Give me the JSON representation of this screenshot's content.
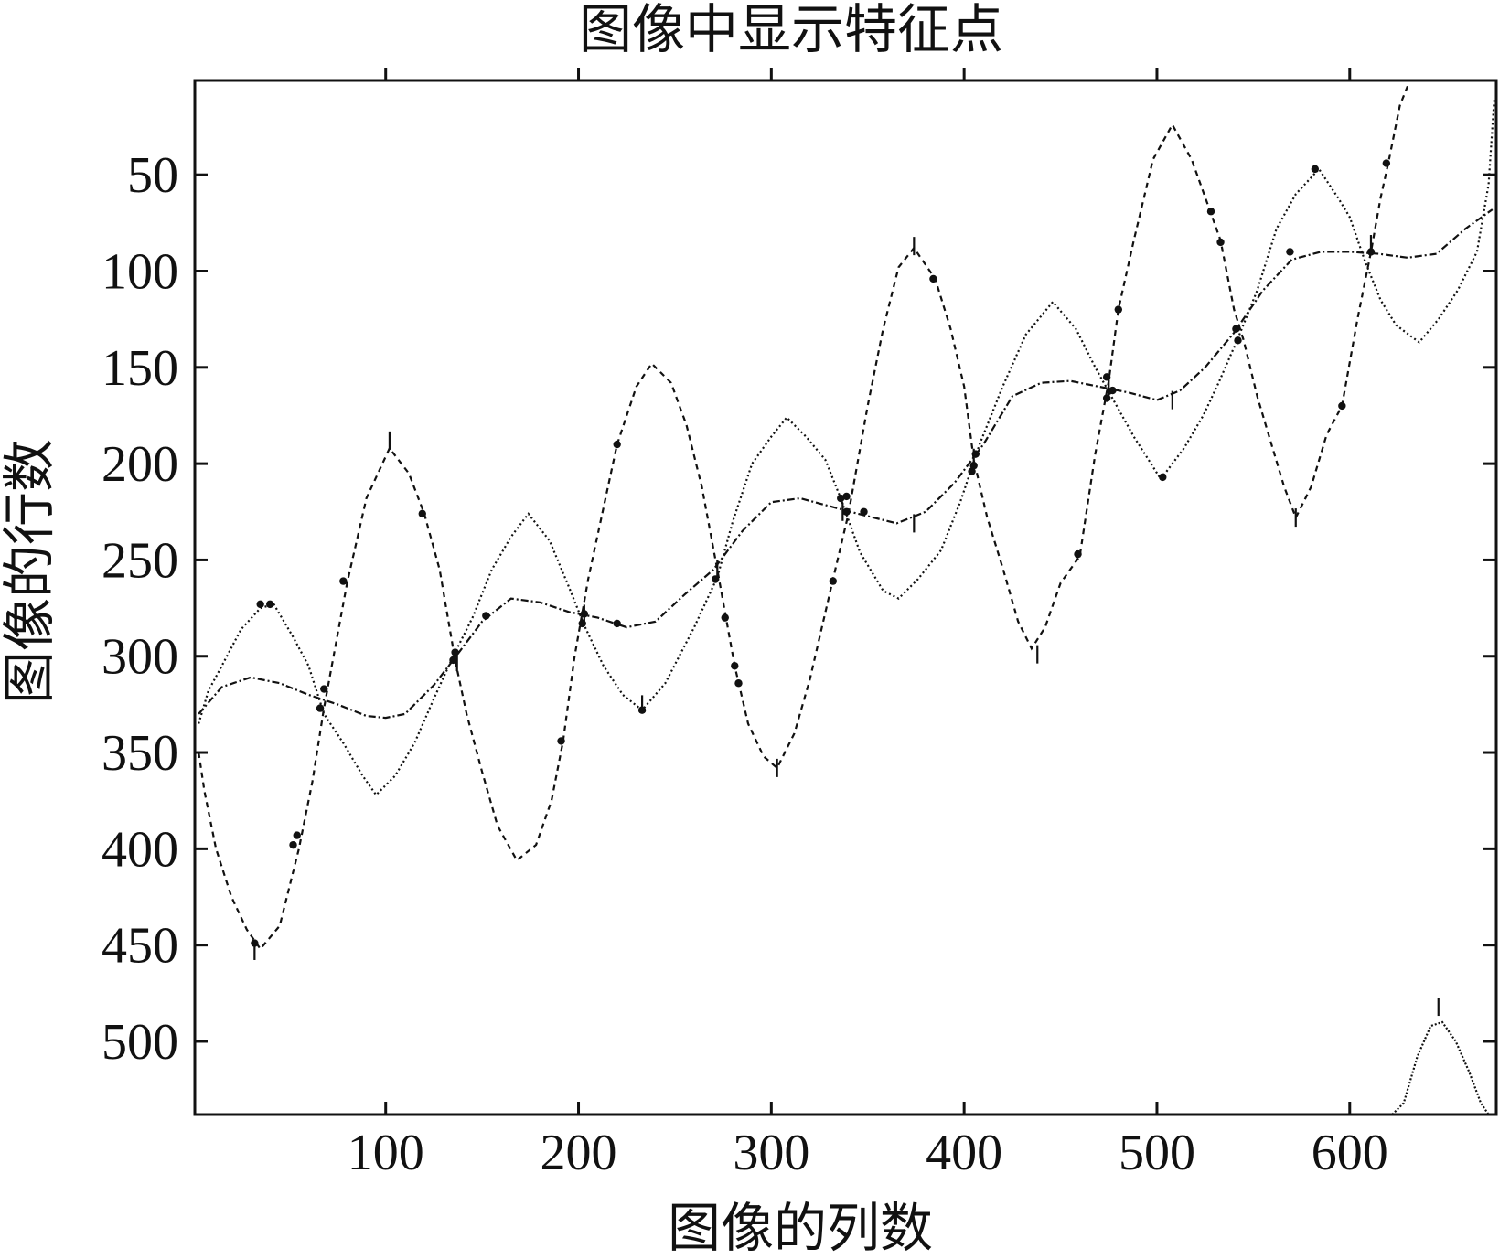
{
  "chart_data": {
    "type": "line",
    "title": "图像中显示特征点",
    "xlabel": "图像的列数",
    "ylabel": "图像的行数",
    "xlim": [
      1,
      676
    ],
    "ylim": [
      1,
      538
    ],
    "y_inverted": true,
    "grid": false,
    "legend": "none",
    "x_ticks": [
      100,
      200,
      300,
      400,
      500,
      600
    ],
    "y_ticks": [
      50,
      100,
      150,
      200,
      250,
      300,
      350,
      400,
      450,
      500
    ],
    "series": [
      {
        "dash": "6,5",
        "points": [
          [
            3,
            350
          ],
          [
            6,
            370
          ],
          [
            12,
            400
          ],
          [
            20,
            425
          ],
          [
            28,
            442
          ],
          [
            35,
            452
          ],
          [
            45,
            440
          ],
          [
            55,
            400
          ],
          [
            62,
            365
          ],
          [
            68,
            327
          ],
          [
            80,
            262
          ],
          [
            90,
            218
          ],
          [
            102,
            192
          ],
          [
            112,
            205
          ],
          [
            120,
            226
          ],
          [
            128,
            255
          ],
          [
            136,
            302
          ],
          [
            142,
            330
          ],
          [
            150,
            360
          ],
          [
            158,
            388
          ],
          [
            168,
            406
          ],
          [
            178,
            398
          ],
          [
            186,
            375
          ],
          [
            192,
            344
          ],
          [
            198,
            300
          ],
          [
            205,
            260
          ],
          [
            220,
            190
          ],
          [
            230,
            160
          ],
          [
            238,
            148
          ],
          [
            248,
            158
          ],
          [
            256,
            180
          ],
          [
            264,
            212
          ],
          [
            272,
            255
          ],
          [
            281,
            305
          ],
          [
            288,
            335
          ],
          [
            296,
            352
          ],
          [
            303,
            358
          ],
          [
            312,
            340
          ],
          [
            320,
            312
          ],
          [
            332,
            260
          ],
          [
            340,
            226
          ],
          [
            350,
            170
          ],
          [
            358,
            130
          ],
          [
            366,
            98
          ],
          [
            374,
            88
          ],
          [
            385,
            104
          ],
          [
            393,
            130
          ],
          [
            400,
            160
          ],
          [
            405,
            198
          ],
          [
            412,
            228
          ],
          [
            420,
            254
          ],
          [
            428,
            282
          ],
          [
            435,
            296
          ],
          [
            442,
            285
          ],
          [
            450,
            262
          ],
          [
            460,
            248
          ],
          [
            468,
            195
          ],
          [
            475,
            157
          ],
          [
            480,
            120
          ],
          [
            488,
            84
          ],
          [
            498,
            42
          ],
          [
            508,
            24
          ],
          [
            518,
            42
          ],
          [
            528,
            70
          ],
          [
            533,
            84
          ],
          [
            540,
            120
          ],
          [
            545,
            136
          ],
          [
            552,
            165
          ],
          [
            560,
            192
          ],
          [
            566,
            212
          ],
          [
            572,
            228
          ],
          [
            580,
            212
          ],
          [
            588,
            185
          ],
          [
            596,
            170
          ],
          [
            604,
            125
          ],
          [
            611,
            90
          ],
          [
            616,
            62
          ],
          [
            620,
            44
          ],
          [
            626,
            14
          ],
          [
            630,
            4
          ]
        ]
      },
      {
        "dash": "2,3",
        "points": [
          [
            3,
            335
          ],
          [
            8,
            318
          ],
          [
            15,
            305
          ],
          [
            25,
            286
          ],
          [
            35,
            275
          ],
          [
            42,
            273
          ],
          [
            52,
            290
          ],
          [
            60,
            305
          ],
          [
            68,
            330
          ],
          [
            78,
            345
          ],
          [
            88,
            362
          ],
          [
            95,
            372
          ],
          [
            105,
            362
          ],
          [
            115,
            345
          ],
          [
            125,
            322
          ],
          [
            135,
            300
          ],
          [
            145,
            280
          ],
          [
            155,
            255
          ],
          [
            165,
            238
          ],
          [
            174,
            226
          ],
          [
            185,
            240
          ],
          [
            195,
            264
          ],
          [
            203,
            284
          ],
          [
            213,
            305
          ],
          [
            223,
            320
          ],
          [
            233,
            328
          ],
          [
            245,
            314
          ],
          [
            260,
            285
          ],
          [
            272,
            259
          ],
          [
            280,
            230
          ],
          [
            290,
            200
          ],
          [
            300,
            186
          ],
          [
            308,
            176
          ],
          [
            318,
            186
          ],
          [
            328,
            198
          ],
          [
            336,
            218
          ],
          [
            346,
            246
          ],
          [
            358,
            266
          ],
          [
            366,
            270
          ],
          [
            376,
            260
          ],
          [
            388,
            245
          ],
          [
            398,
            220
          ],
          [
            408,
            190
          ],
          [
            420,
            160
          ],
          [
            432,
            133
          ],
          [
            446,
            116
          ],
          [
            458,
            130
          ],
          [
            468,
            150
          ],
          [
            478,
            168
          ],
          [
            488,
            186
          ],
          [
            502,
            208
          ],
          [
            514,
            192
          ],
          [
            524,
            175
          ],
          [
            532,
            158
          ],
          [
            542,
            135
          ],
          [
            552,
            110
          ],
          [
            562,
            78
          ],
          [
            572,
            60
          ],
          [
            584,
            47
          ],
          [
            594,
            62
          ],
          [
            600,
            72
          ],
          [
            608,
            95
          ],
          [
            616,
            115
          ],
          [
            624,
            128
          ],
          [
            636,
            137
          ],
          [
            646,
            125
          ],
          [
            656,
            110
          ],
          [
            666,
            90
          ],
          [
            672,
            55
          ],
          [
            675,
            10
          ]
        ]
      },
      {
        "dash": "8,3,2,3",
        "points": [
          [
            3,
            330
          ],
          [
            15,
            316
          ],
          [
            30,
            311
          ],
          [
            45,
            314
          ],
          [
            60,
            320
          ],
          [
            75,
            325
          ],
          [
            90,
            331
          ],
          [
            100,
            332
          ],
          [
            110,
            330
          ],
          [
            125,
            315
          ],
          [
            135,
            302
          ],
          [
            150,
            282
          ],
          [
            165,
            270
          ],
          [
            180,
            272
          ],
          [
            195,
            277
          ],
          [
            210,
            280
          ],
          [
            225,
            285
          ],
          [
            240,
            282
          ],
          [
            255,
            268
          ],
          [
            270,
            255
          ],
          [
            285,
            235
          ],
          [
            300,
            220
          ],
          [
            315,
            218
          ],
          [
            330,
            222
          ],
          [
            345,
            226
          ],
          [
            365,
            231
          ],
          [
            380,
            225
          ],
          [
            395,
            210
          ],
          [
            410,
            190
          ],
          [
            425,
            165
          ],
          [
            440,
            158
          ],
          [
            455,
            157
          ],
          [
            470,
            160
          ],
          [
            485,
            163
          ],
          [
            500,
            167
          ],
          [
            512,
            162
          ],
          [
            525,
            150
          ],
          [
            540,
            132
          ],
          [
            555,
            110
          ],
          [
            570,
            94
          ],
          [
            585,
            90
          ],
          [
            600,
            90
          ],
          [
            615,
            91
          ],
          [
            630,
            93
          ],
          [
            645,
            91
          ],
          [
            660,
            78
          ],
          [
            674,
            68
          ]
        ]
      },
      {
        "dash": "2,2",
        "points": [
          [
            622,
            538
          ],
          [
            628,
            532
          ],
          [
            635,
            508
          ],
          [
            642,
            492
          ],
          [
            648,
            490
          ],
          [
            655,
            500
          ],
          [
            662,
            516
          ],
          [
            668,
            532
          ],
          [
            672,
            538
          ]
        ]
      }
    ],
    "feature_points": [
      [
        32,
        449
      ],
      [
        35,
        273
      ],
      [
        40,
        273
      ],
      [
        52,
        398
      ],
      [
        54,
        393
      ],
      [
        66,
        327
      ],
      [
        68,
        317
      ],
      [
        78,
        261
      ],
      [
        119,
        226
      ],
      [
        135,
        302
      ],
      [
        136,
        298
      ],
      [
        152,
        279
      ],
      [
        191,
        344
      ],
      [
        202,
        283
      ],
      [
        203,
        278
      ],
      [
        220,
        283
      ],
      [
        220,
        190
      ],
      [
        233,
        328
      ],
      [
        271,
        260
      ],
      [
        276,
        280
      ],
      [
        281,
        305
      ],
      [
        283,
        314
      ],
      [
        332,
        261
      ],
      [
        336,
        218
      ],
      [
        339,
        225
      ],
      [
        339,
        217
      ],
      [
        348,
        225
      ],
      [
        384,
        104
      ],
      [
        404,
        204
      ],
      [
        405,
        201
      ],
      [
        406,
        195
      ],
      [
        459,
        247
      ],
      [
        474,
        166
      ],
      [
        474,
        155
      ],
      [
        477,
        162
      ],
      [
        480,
        120
      ],
      [
        503,
        207
      ],
      [
        528,
        69
      ],
      [
        533,
        85
      ],
      [
        541,
        130
      ],
      [
        542,
        136
      ],
      [
        569,
        90
      ],
      [
        582,
        47
      ],
      [
        596,
        170
      ],
      [
        611,
        90
      ],
      [
        619,
        44
      ]
    ],
    "markers": [
      [
        32,
        453
      ],
      [
        102,
        188
      ],
      [
        137,
        303
      ],
      [
        203,
        278
      ],
      [
        233,
        325
      ],
      [
        272,
        255
      ],
      [
        303,
        358
      ],
      [
        337,
        225
      ],
      [
        374,
        87
      ],
      [
        405,
        197
      ],
      [
        438,
        299
      ],
      [
        475,
        160
      ],
      [
        508,
        167
      ],
      [
        572,
        228
      ],
      [
        611,
        86
      ],
      [
        646,
        482
      ],
      [
        374,
        231
      ]
    ]
  }
}
